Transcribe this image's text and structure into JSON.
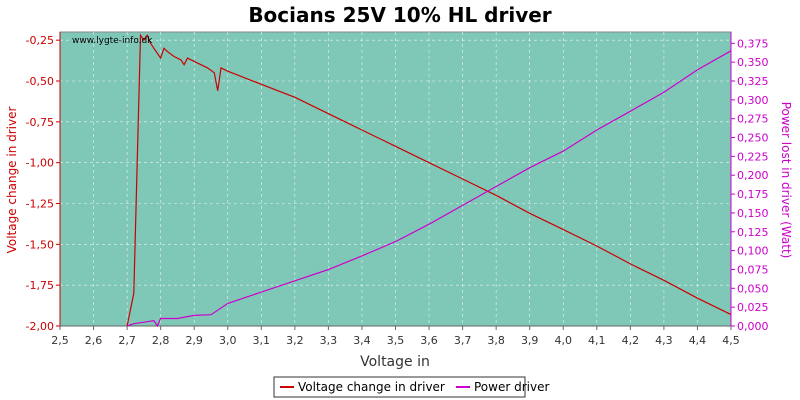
{
  "chart_data": {
    "type": "line",
    "title": "Bocians 25V 10% HL driver",
    "watermark": "www.lygte-info.dk",
    "xlabel": "Voltage in",
    "ylabel_left": "Voltage change in driver",
    "ylabel_right": "Power lost in driver (Watt)",
    "xlim": [
      2.5,
      4.5
    ],
    "ylim_left": [
      -2.0,
      -0.2
    ],
    "ylim_right": [
      0.0,
      0.39
    ],
    "x_ticks": [
      "2,5",
      "2,6",
      "2,7",
      "2,8",
      "2,9",
      "3,0",
      "3,1",
      "3,2",
      "3,3",
      "3,4",
      "3,5",
      "3,6",
      "3,7",
      "3,8",
      "3,9",
      "4,0",
      "4,1",
      "4,2",
      "4,3",
      "4,4",
      "4,5"
    ],
    "y_left_ticks": [
      "-0,25",
      "-0,50",
      "-0,75",
      "-1,00",
      "-1,25",
      "-1,50",
      "-1,75",
      "-2,00"
    ],
    "y_right_ticks": [
      "0,000",
      "0,025",
      "0,050",
      "0,075",
      "0,100",
      "0,125",
      "0,150",
      "0,175",
      "0,200",
      "0,225",
      "0,250",
      "0,275",
      "0,300",
      "0,325",
      "0,350",
      "0,375"
    ],
    "grid": true,
    "background_color": "#7fc8b8",
    "legend_position": "bottom",
    "series": [
      {
        "name": "Voltage change in driver",
        "axis": "left",
        "color": "#cc0000",
        "points": [
          [
            2.7,
            -2.0
          ],
          [
            2.72,
            -1.8
          ],
          [
            2.73,
            -1.0
          ],
          [
            2.74,
            -0.22
          ],
          [
            2.75,
            -0.25
          ],
          [
            2.76,
            -0.22
          ],
          [
            2.77,
            -0.27
          ],
          [
            2.78,
            -0.3
          ],
          [
            2.79,
            -0.33
          ],
          [
            2.8,
            -0.36
          ],
          [
            2.81,
            -0.3
          ],
          [
            2.82,
            -0.32
          ],
          [
            2.84,
            -0.35
          ],
          [
            2.86,
            -0.37
          ],
          [
            2.87,
            -0.4
          ],
          [
            2.88,
            -0.36
          ],
          [
            2.9,
            -0.38
          ],
          [
            2.92,
            -0.4
          ],
          [
            2.94,
            -0.42
          ],
          [
            2.96,
            -0.45
          ],
          [
            2.97,
            -0.56
          ],
          [
            2.98,
            -0.42
          ],
          [
            3.0,
            -0.44
          ],
          [
            3.1,
            -0.52
          ],
          [
            3.2,
            -0.6
          ],
          [
            3.3,
            -0.7
          ],
          [
            3.4,
            -0.8
          ],
          [
            3.5,
            -0.9
          ],
          [
            3.6,
            -1.0
          ],
          [
            3.7,
            -1.1
          ],
          [
            3.8,
            -1.2
          ],
          [
            3.9,
            -1.31
          ],
          [
            4.0,
            -1.41
          ],
          [
            4.1,
            -1.51
          ],
          [
            4.2,
            -1.62
          ],
          [
            4.3,
            -1.72
          ],
          [
            4.4,
            -1.83
          ],
          [
            4.5,
            -1.93
          ]
        ]
      },
      {
        "name": "Power driver",
        "axis": "right",
        "color": "#cc00cc",
        "points": [
          [
            2.7,
            0.0
          ],
          [
            2.72,
            0.003
          ],
          [
            2.75,
            0.005
          ],
          [
            2.78,
            0.007
          ],
          [
            2.79,
            0.0
          ],
          [
            2.8,
            0.01
          ],
          [
            2.85,
            0.01
          ],
          [
            2.9,
            0.014
          ],
          [
            2.95,
            0.015
          ],
          [
            3.0,
            0.03
          ],
          [
            3.1,
            0.045
          ],
          [
            3.2,
            0.06
          ],
          [
            3.3,
            0.075
          ],
          [
            3.4,
            0.093
          ],
          [
            3.5,
            0.112
          ],
          [
            3.6,
            0.135
          ],
          [
            3.7,
            0.16
          ],
          [
            3.8,
            0.185
          ],
          [
            3.9,
            0.21
          ],
          [
            4.0,
            0.232
          ],
          [
            4.1,
            0.26
          ],
          [
            4.2,
            0.285
          ],
          [
            4.3,
            0.31
          ],
          [
            4.4,
            0.34
          ],
          [
            4.5,
            0.365
          ]
        ]
      }
    ]
  }
}
